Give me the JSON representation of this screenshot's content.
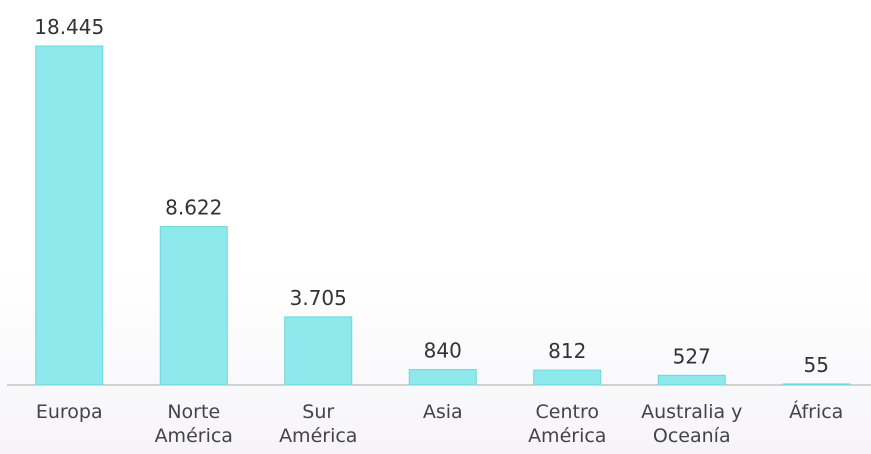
{
  "chart_data": {
    "type": "bar",
    "categories": [
      "Europa",
      "Norte América",
      "Sur América",
      "Asia",
      "Centro América",
      "Australia y Oceanía",
      "África"
    ],
    "values": [
      18445,
      8622,
      3705,
      840,
      812,
      527,
      55
    ],
    "value_labels": [
      "18.445",
      "8.622",
      "3.705",
      "840",
      "812",
      "527",
      "55"
    ],
    "color": "#8ee9ec"
  }
}
